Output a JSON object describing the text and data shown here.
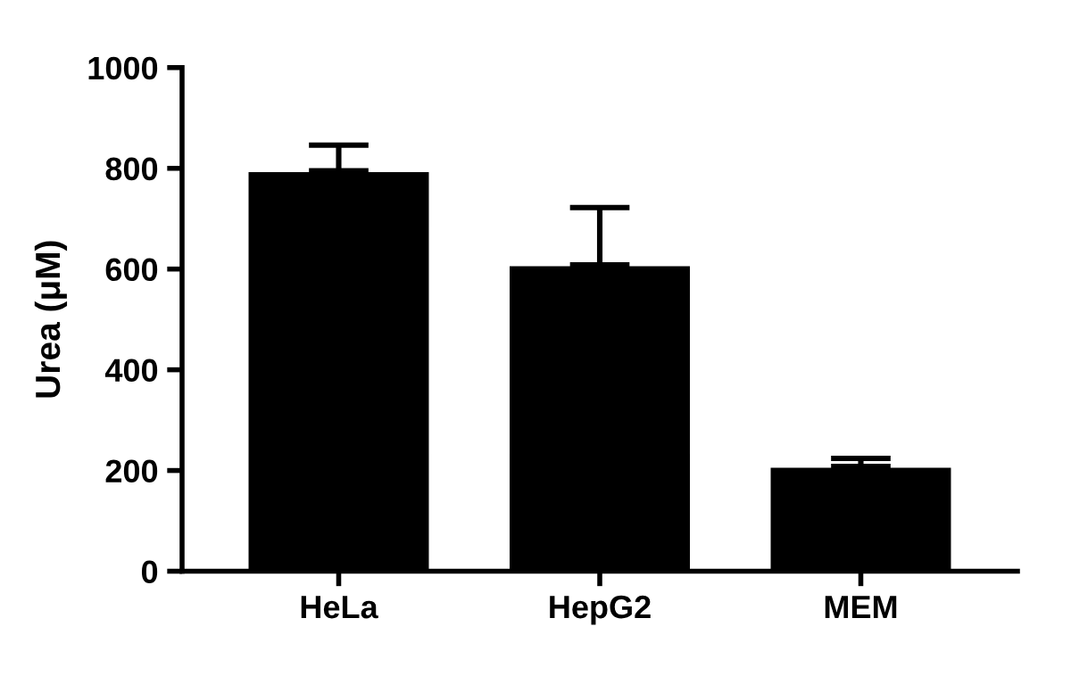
{
  "chart_data": {
    "type": "bar",
    "ylabel": "Urea (μM)",
    "categories": [
      "HeLa",
      "HepG2",
      "MEM"
    ],
    "values": [
      795,
      608,
      208
    ],
    "errors": [
      [
        795,
        846
      ],
      [
        608,
        722
      ],
      [
        208,
        224
      ]
    ],
    "color": "#000000",
    "ylim": [
      0,
      1000
    ],
    "yticks": [
      0,
      200,
      400,
      600,
      800,
      1000
    ],
    "grid": false
  }
}
